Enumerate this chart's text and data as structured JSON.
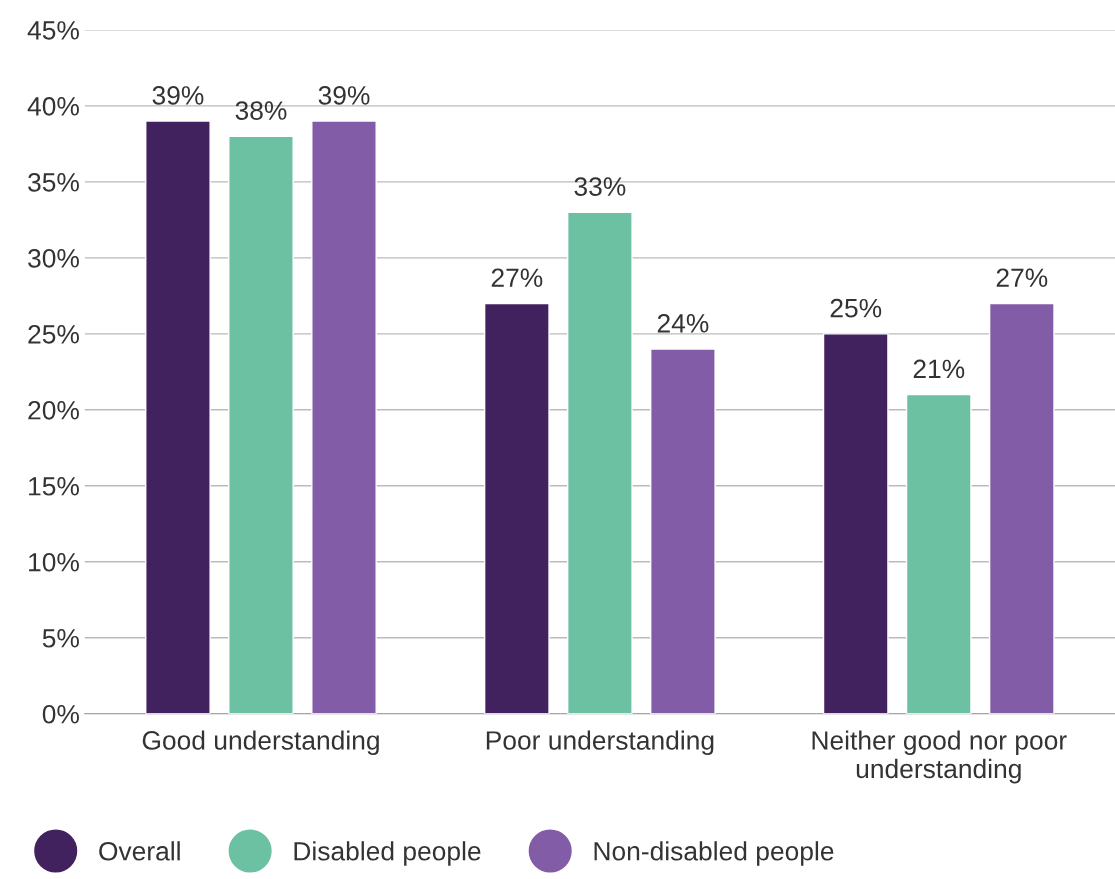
{
  "chart_data": {
    "type": "bar",
    "categories": [
      "Good understanding",
      "Poor understanding",
      "Neither good nor poor\nunderstanding"
    ],
    "series": [
      {
        "name": "Overall",
        "color": "#42215f",
        "values": [
          39,
          27,
          25
        ],
        "value_labels": [
          "39%",
          "27%",
          "25%"
        ]
      },
      {
        "name": "Disabled people",
        "color": "#6cc1a3",
        "values": [
          38,
          33,
          21
        ],
        "value_labels": [
          "38%",
          "33%",
          "21%"
        ]
      },
      {
        "name": "Non-disabled people",
        "color": "#825ca6",
        "values": [
          39,
          24,
          27
        ],
        "value_labels": [
          "39%",
          "24%",
          "27%"
        ]
      }
    ],
    "ylim": [
      0,
      45
    ],
    "yticks": [
      {
        "value": 0,
        "label": "0%"
      },
      {
        "value": 5,
        "label": "5%"
      },
      {
        "value": 10,
        "label": "10%"
      },
      {
        "value": 15,
        "label": "15%"
      },
      {
        "value": 20,
        "label": "20%"
      },
      {
        "value": 25,
        "label": "25%"
      },
      {
        "value": 30,
        "label": "30%"
      },
      {
        "value": 35,
        "label": "35%"
      },
      {
        "value": 40,
        "label": "40%"
      },
      {
        "value": 45,
        "label": "45%"
      }
    ],
    "grid": "y",
    "legend": "bottom left",
    "marker": "circle"
  }
}
